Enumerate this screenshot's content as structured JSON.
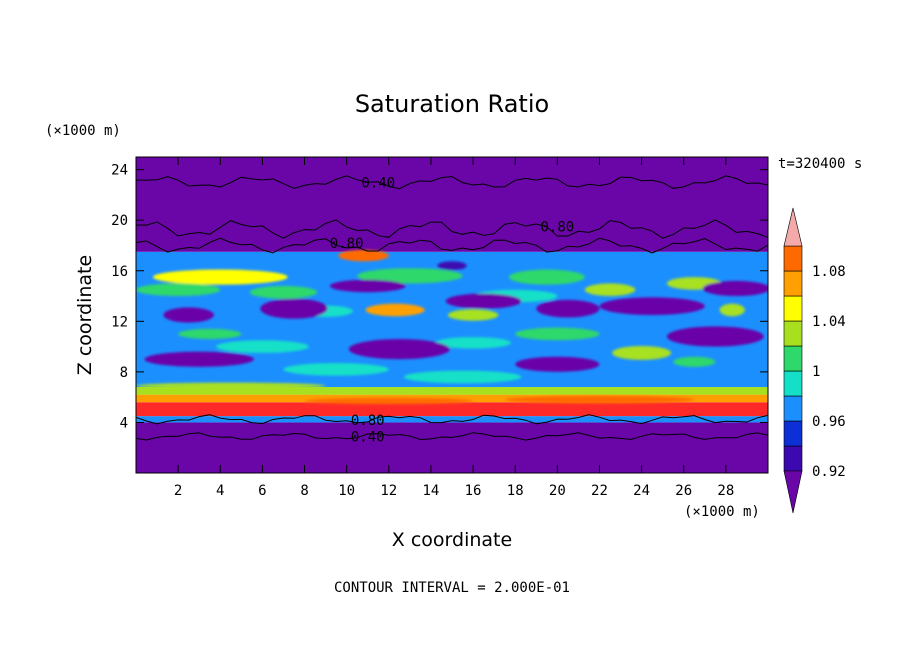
{
  "chart_data": {
    "type": "heatmap",
    "title": "Saturation Ratio",
    "xlabel": "X coordinate",
    "ylabel": "Z coordinate",
    "x_unit": "(×1000 m)",
    "y_unit": "(×1000 m)",
    "time_label": "t=320400 s",
    "footer": "CONTOUR INTERVAL = 2.000E-01",
    "xlim": [
      0,
      30
    ],
    "ylim": [
      0,
      25
    ],
    "xticks": [
      2,
      4,
      6,
      8,
      10,
      12,
      14,
      16,
      18,
      20,
      22,
      24,
      26,
      28
    ],
    "yticks": [
      4,
      8,
      12,
      16,
      20,
      24
    ],
    "colorbar": {
      "levels": [
        0.92,
        0.94,
        0.96,
        0.98,
        1.0,
        1.02,
        1.04,
        1.06,
        1.08,
        1.1
      ],
      "labels": [
        "0.92",
        "0.96",
        "1",
        "1.04",
        "1.08"
      ],
      "colors": [
        "#6a06a8",
        "#3c08b0",
        "#0d2fd6",
        "#1c8fff",
        "#14e0c8",
        "#2fd86a",
        "#a8e020",
        "#ffff00",
        "#ffa000",
        "#ff6a00",
        "#ff2a28",
        "#f4aaa8"
      ]
    },
    "contour_labels": [
      {
        "text": "0.40",
        "x": 11.5,
        "z": 23.0
      },
      {
        "text": "0.80",
        "x": 20.0,
        "z": 19.5
      },
      {
        "text": "0.80",
        "x": 10.0,
        "z": 18.2
      },
      {
        "text": "0.80",
        "x": 11.0,
        "z": 4.2
      },
      {
        "text": "0.40",
        "x": 11.0,
        "z": 2.9
      }
    ],
    "bands": [
      {
        "z_from": 0.0,
        "z_to": 4.0,
        "level": 0.9
      },
      {
        "z_from": 4.0,
        "z_to": 4.5,
        "level": 0.96
      },
      {
        "z_from": 4.5,
        "z_to": 5.6,
        "level": 1.1
      },
      {
        "z_from": 5.6,
        "z_to": 6.2,
        "level": 1.06
      },
      {
        "z_from": 6.2,
        "z_to": 6.8,
        "level": 1.02
      },
      {
        "z_from": 6.8,
        "z_to": 17.5,
        "level": 0.96
      },
      {
        "z_from": 17.5,
        "z_to": 25.0,
        "level": 0.9
      }
    ],
    "blobs": [
      {
        "x": 4.0,
        "z": 15.5,
        "rx": 3.2,
        "rz": 0.6,
        "level": 1.04
      },
      {
        "x": 2.0,
        "z": 14.5,
        "rx": 2.0,
        "rz": 0.5,
        "level": 1.0
      },
      {
        "x": 7.0,
        "z": 14.3,
        "rx": 1.6,
        "rz": 0.5,
        "level": 1.0
      },
      {
        "x": 10.8,
        "z": 17.2,
        "rx": 1.2,
        "rz": 0.45,
        "level": 1.08
      },
      {
        "x": 13.0,
        "z": 15.6,
        "rx": 2.5,
        "rz": 0.6,
        "level": 1.0
      },
      {
        "x": 12.3,
        "z": 12.9,
        "rx": 1.4,
        "rz": 0.5,
        "level": 1.06
      },
      {
        "x": 16.0,
        "z": 12.5,
        "rx": 1.2,
        "rz": 0.45,
        "level": 1.02
      },
      {
        "x": 19.5,
        "z": 15.5,
        "rx": 1.8,
        "rz": 0.6,
        "level": 1.0
      },
      {
        "x": 22.5,
        "z": 14.5,
        "rx": 1.2,
        "rz": 0.5,
        "level": 1.02
      },
      {
        "x": 26.5,
        "z": 15.0,
        "rx": 1.3,
        "rz": 0.5,
        "level": 1.02
      },
      {
        "x": 28.3,
        "z": 12.9,
        "rx": 0.6,
        "rz": 0.5,
        "level": 1.02
      },
      {
        "x": 24.0,
        "z": 9.5,
        "rx": 1.4,
        "rz": 0.55,
        "level": 1.02
      },
      {
        "x": 26.5,
        "z": 8.8,
        "rx": 1.0,
        "rz": 0.4,
        "level": 1.0
      },
      {
        "x": 20.0,
        "z": 11.0,
        "rx": 2.0,
        "rz": 0.5,
        "level": 1.0
      },
      {
        "x": 3.5,
        "z": 11.0,
        "rx": 1.5,
        "rz": 0.4,
        "level": 1.0
      },
      {
        "x": 9.0,
        "z": 12.8,
        "rx": 1.3,
        "rz": 0.45,
        "level": 0.98
      },
      {
        "x": 6.0,
        "z": 10.0,
        "rx": 2.2,
        "rz": 0.5,
        "level": 0.98
      },
      {
        "x": 16.0,
        "z": 10.3,
        "rx": 1.8,
        "rz": 0.45,
        "level": 0.98
      },
      {
        "x": 18.0,
        "z": 14.0,
        "rx": 2.0,
        "rz": 0.5,
        "level": 0.98
      },
      {
        "x": 15.5,
        "z": 7.6,
        "rx": 2.8,
        "rz": 0.5,
        "level": 0.98
      },
      {
        "x": 9.5,
        "z": 8.2,
        "rx": 2.5,
        "rz": 0.5,
        "level": 0.98
      },
      {
        "x": 2.5,
        "z": 12.5,
        "rx": 1.2,
        "rz": 0.6,
        "level": 0.9
      },
      {
        "x": 7.5,
        "z": 13.0,
        "rx": 1.6,
        "rz": 0.8,
        "level": 0.9
      },
      {
        "x": 11.0,
        "z": 14.8,
        "rx": 1.8,
        "rz": 0.5,
        "level": 0.9
      },
      {
        "x": 16.5,
        "z": 13.6,
        "rx": 1.8,
        "rz": 0.6,
        "level": 0.9
      },
      {
        "x": 20.5,
        "z": 13.0,
        "rx": 1.5,
        "rz": 0.7,
        "level": 0.9
      },
      {
        "x": 24.5,
        "z": 13.2,
        "rx": 2.5,
        "rz": 0.7,
        "level": 0.9
      },
      {
        "x": 28.5,
        "z": 14.6,
        "rx": 1.6,
        "rz": 0.6,
        "level": 0.9
      },
      {
        "x": 3.0,
        "z": 9.0,
        "rx": 2.6,
        "rz": 0.6,
        "level": 0.9
      },
      {
        "x": 12.5,
        "z": 9.8,
        "rx": 2.4,
        "rz": 0.8,
        "level": 0.9
      },
      {
        "x": 20.0,
        "z": 8.6,
        "rx": 2.0,
        "rz": 0.6,
        "level": 0.9
      },
      {
        "x": 27.5,
        "z": 10.8,
        "rx": 2.3,
        "rz": 0.8,
        "level": 0.9
      },
      {
        "x": 15.0,
        "z": 16.4,
        "rx": 0.7,
        "rz": 0.35,
        "level": 0.92
      },
      {
        "x": 4.5,
        "z": 6.9,
        "rx": 4.5,
        "rz": 0.25,
        "level": 1.02
      },
      {
        "x": 12.0,
        "z": 5.7,
        "rx": 4.0,
        "rz": 0.25,
        "level": 1.08
      },
      {
        "x": 22.0,
        "z": 5.8,
        "rx": 4.5,
        "rz": 0.3,
        "level": 1.08
      }
    ]
  }
}
